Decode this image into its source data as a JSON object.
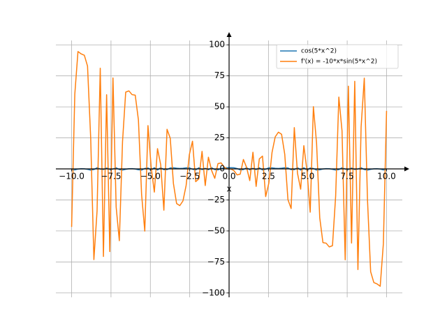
{
  "chart_data": {
    "type": "line",
    "x_label": "x",
    "x": [
      -10,
      -9.798,
      -9.596,
      -9.3939,
      -9.1919,
      -8.9899,
      -8.7879,
      -8.5859,
      -8.3838,
      -8.1818,
      -7.9798,
      -7.7778,
      -7.5758,
      -7.3737,
      -7.1717,
      -6.9697,
      -6.7677,
      -6.5657,
      -6.3636,
      -6.1616,
      -5.9596,
      -5.7576,
      -5.5556,
      -5.3535,
      -5.1515,
      -4.9495,
      -4.7475,
      -4.5455,
      -4.3434,
      -4.1414,
      -3.9394,
      -3.7374,
      -3.5354,
      -3.3333,
      -3.1313,
      -2.9293,
      -2.7273,
      -2.5253,
      -2.3232,
      -2.1212,
      -1.9192,
      -1.7172,
      -1.5152,
      -1.3131,
      -1.1111,
      -0.9091,
      -0.7071,
      -0.5051,
      -0.303,
      -0.101,
      0.101,
      0.303,
      0.5051,
      0.7071,
      0.9091,
      1.1111,
      1.3131,
      1.5152,
      1.7172,
      1.9192,
      2.1212,
      2.3232,
      2.5253,
      2.7273,
      2.9293,
      3.1313,
      3.3333,
      3.5354,
      3.7374,
      3.9394,
      4.1414,
      4.3434,
      4.5455,
      4.7475,
      4.9495,
      5.1515,
      5.3535,
      5.5556,
      5.7576,
      5.9596,
      6.1616,
      6.3636,
      6.5657,
      6.7677,
      6.9697,
      7.1717,
      7.3737,
      7.5758,
      7.7778,
      7.9798,
      8.1818,
      8.3838,
      8.5859,
      8.7879,
      8.9899,
      9.1919,
      9.3939,
      9.596,
      9.798,
      10
    ],
    "series": [
      {
        "name": "cos(5*x^2)",
        "color": "#1f77b4",
        "values": [
          -0.88,
          -0.79,
          -0.17,
          0.16,
          0.09,
          -0.39,
          -0.96,
          -0.52,
          0.92,
          -0.13,
          -0.47,
          0.64,
          -0.48,
          -0.11,
          0.9,
          -0.56,
          -0.95,
          -0.33,
          0.15,
          0.24,
          -0.08,
          -0.73,
          -0.93,
          0.35,
          0.74,
          -1,
          0.92,
          -0.93,
          1,
          -0.6,
          -0.59,
          0.75,
          0.94,
          0.55,
          0.33,
          0.47,
          0.87,
          0.89,
          -0.28,
          -0.87,
          0.91,
          -0.57,
          0.46,
          -0.7,
          0.99,
          -0.55,
          -0.8,
          0.29,
          0.9,
          1,
          1,
          0.9,
          0.29,
          -0.8,
          -0.55,
          0.99,
          -0.7,
          0.46,
          -0.57,
          0.91,
          -0.87,
          -0.28,
          0.89,
          0.87,
          0.47,
          0.33,
          0.55,
          0.94,
          0.75,
          -0.59,
          -0.6,
          1,
          -0.93,
          0.92,
          -1,
          0.74,
          0.35,
          -0.93,
          -0.73,
          -0.08,
          0.24,
          0.15,
          -0.33,
          -0.95,
          -0.56,
          0.9,
          -0.11,
          -0.48,
          0.64,
          -0.47,
          -0.13,
          0.92,
          -0.52,
          -0.96,
          -0.39,
          0.09,
          0.16,
          -0.17,
          -0.79,
          -0.88
        ]
      },
      {
        "name": "f'(x) = -10*x*sin(5*x^2)",
        "color": "#ff7f0e",
        "values": [
          -46.78,
          60.23,
          94.6,
          92.69,
          91.57,
          82.88,
          24.49,
          -73.09,
          -33.77,
          81.13,
          -70.57,
          59.77,
          -66.66,
          73.27,
          -30.74,
          -57.88,
          21.88,
          61.88,
          62.89,
          59.87,
          59.39,
          39.43,
          -20.76,
          -50.12,
          34.88,
          1.71,
          -18.7,
          16.32,
          3.44,
          -33.28,
          31.95,
          24.78,
          -11.73,
          -27.93,
          -29.61,
          -25.81,
          -13.29,
          11.4,
          22.31,
          -10.29,
          -8.06,
          14.11,
          -13.42,
          9.44,
          -1.22,
          -7.6,
          4.23,
          4.83,
          1.34,
          0.05,
          -0.05,
          -1.34,
          -4.83,
          -4.23,
          7.6,
          1.22,
          -9.44,
          13.42,
          -14.11,
          8.06,
          10.29,
          -22.31,
          -11.4,
          13.29,
          25.81,
          29.61,
          27.93,
          11.73,
          -24.78,
          -31.95,
          33.28,
          -3.44,
          -16.32,
          18.7,
          -1.71,
          -34.88,
          50.12,
          20.76,
          -39.43,
          -59.39,
          -59.87,
          -62.89,
          -61.88,
          -21.88,
          57.88,
          30.74,
          -73.27,
          66.66,
          -59.77,
          70.57,
          -81.13,
          33.77,
          73.09,
          -24.49,
          -82.88,
          -91.57,
          -92.69,
          -94.6,
          -60.23,
          46.78
        ]
      }
    ],
    "xlim": [
      -11,
      11
    ],
    "ylim": [
      -103.5,
      103.5
    ],
    "xticks": [
      {
        "value": -10,
        "label": "−10.0"
      },
      {
        "value": -7.5,
        "label": "−7.5"
      },
      {
        "value": -5,
        "label": "−5.0"
      },
      {
        "value": -2.5,
        "label": "−2.5"
      },
      {
        "value": 0,
        "label": "0.0"
      },
      2.5,
      {
        "value": 5,
        "label": "5.0"
      },
      7.5,
      {
        "value": 10,
        "label": "10.0"
      }
    ],
    "yticks": [
      {
        "value": -100,
        "label": "−100"
      },
      {
        "value": -75,
        "label": "−75"
      },
      {
        "value": -50,
        "label": "−50"
      },
      {
        "value": -25,
        "label": "−25"
      },
      0,
      25,
      50,
      75,
      100
    ],
    "grid": true,
    "legend": "upper right"
  }
}
